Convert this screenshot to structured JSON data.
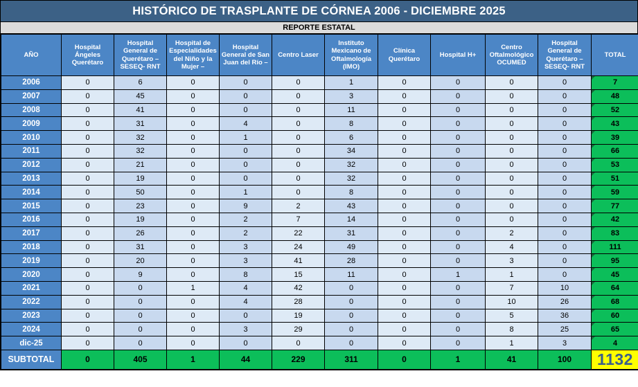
{
  "chart_data": {
    "type": "table",
    "title": "HISTÓRICO DE TRASPLANTE DE CÓRNEA 2006 - DICIEMBRE 2025",
    "subtitle": "REPORTE ESTATAL",
    "columns": [
      "AÑO",
      "Hospital Ángeles Querétaro",
      "Hospital General de Querétaro – SESEQ- RNT",
      "Hospital de Especialidades del Niño y la Mujer –",
      "Hospital General de San Juan del Río –",
      "Centro Laser",
      "Instituto Mexicano de Oftalmología (IMO)",
      "Clínica Querétaro",
      "Hospital H+",
      "Centro Oftalmológico OCUMED",
      "Hospital General de Querétaro – SESEQ- RNT",
      "TOTAL"
    ],
    "rows": [
      {
        "year": "2006",
        "values": [
          0,
          6,
          0,
          0,
          0,
          1,
          0,
          0,
          0,
          0
        ],
        "total": 7
      },
      {
        "year": "2007",
        "values": [
          0,
          45,
          0,
          0,
          0,
          3,
          0,
          0,
          0,
          0
        ],
        "total": 48
      },
      {
        "year": "2008",
        "values": [
          0,
          41,
          0,
          0,
          0,
          11,
          0,
          0,
          0,
          0
        ],
        "total": 52
      },
      {
        "year": "2009",
        "values": [
          0,
          31,
          0,
          4,
          0,
          8,
          0,
          0,
          0,
          0
        ],
        "total": 43
      },
      {
        "year": "2010",
        "values": [
          0,
          32,
          0,
          1,
          0,
          6,
          0,
          0,
          0,
          0
        ],
        "total": 39
      },
      {
        "year": "2011",
        "values": [
          0,
          32,
          0,
          0,
          0,
          34,
          0,
          0,
          0,
          0
        ],
        "total": 66
      },
      {
        "year": "2012",
        "values": [
          0,
          21,
          0,
          0,
          0,
          32,
          0,
          0,
          0,
          0
        ],
        "total": 53
      },
      {
        "year": "2013",
        "values": [
          0,
          19,
          0,
          0,
          0,
          32,
          0,
          0,
          0,
          0
        ],
        "total": 51
      },
      {
        "year": "2014",
        "values": [
          0,
          50,
          0,
          1,
          0,
          8,
          0,
          0,
          0,
          0
        ],
        "total": 59
      },
      {
        "year": "2015",
        "values": [
          0,
          23,
          0,
          9,
          2,
          43,
          0,
          0,
          0,
          0
        ],
        "total": 77
      },
      {
        "year": "2016",
        "values": [
          0,
          19,
          0,
          2,
          7,
          14,
          0,
          0,
          0,
          0
        ],
        "total": 42
      },
      {
        "year": "2017",
        "values": [
          0,
          26,
          0,
          2,
          22,
          31,
          0,
          0,
          2,
          0
        ],
        "total": 83
      },
      {
        "year": "2018",
        "values": [
          0,
          31,
          0,
          3,
          24,
          49,
          0,
          0,
          4,
          0
        ],
        "total": 111
      },
      {
        "year": "2019",
        "values": [
          0,
          20,
          0,
          3,
          41,
          28,
          0,
          0,
          3,
          0
        ],
        "total": 95
      },
      {
        "year": "2020",
        "values": [
          0,
          9,
          0,
          8,
          15,
          11,
          0,
          1,
          1,
          0
        ],
        "total": 45
      },
      {
        "year": "2021",
        "values": [
          0,
          0,
          1,
          4,
          42,
          0,
          0,
          0,
          7,
          10
        ],
        "total": 64
      },
      {
        "year": "2022",
        "values": [
          0,
          0,
          0,
          4,
          28,
          0,
          0,
          0,
          10,
          26
        ],
        "total": 68
      },
      {
        "year": "2023",
        "values": [
          0,
          0,
          0,
          0,
          19,
          0,
          0,
          0,
          5,
          36
        ],
        "total": 60
      },
      {
        "year": "2024",
        "values": [
          0,
          0,
          0,
          3,
          29,
          0,
          0,
          0,
          8,
          25
        ],
        "total": 65
      },
      {
        "year": "dic-25",
        "values": [
          0,
          0,
          0,
          0,
          0,
          0,
          0,
          0,
          1,
          3
        ],
        "total": 4
      }
    ],
    "subtotal": {
      "label": "SUBTOTAL",
      "values": [
        0,
        405,
        1,
        44,
        229,
        311,
        0,
        1,
        41,
        100
      ],
      "total": 1132
    }
  },
  "colors": {
    "title_bar_bg": "#3C6186",
    "subtitle_bg": "#DCDCDC",
    "header_bg": "#4C86C6",
    "cell_light": "#DEEAF6",
    "cell_dark": "#C8D9EF",
    "total_green": "#0CBE5A",
    "triangle_dark_green": "#17693B",
    "grand_total_bg": "#FFFF00",
    "grand_total_text": "#3B5E8B"
  }
}
